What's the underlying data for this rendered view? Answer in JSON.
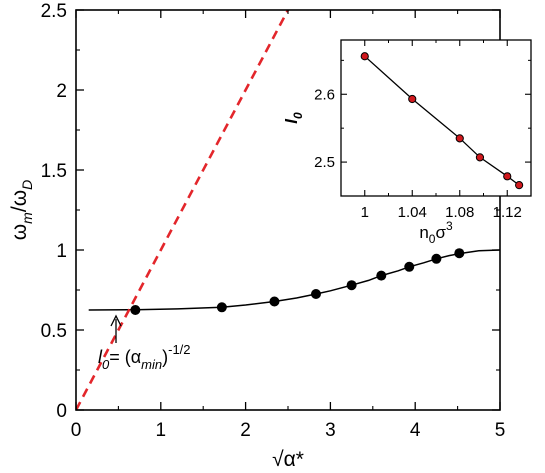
{
  "chart_data": [
    {
      "type": "line",
      "xlabel": "√α*",
      "ylabel": "ωm/ωD",
      "xlim": [
        0,
        5
      ],
      "ylim": [
        0,
        2.5
      ],
      "xticks": [
        "0",
        "1",
        "2",
        "3",
        "4",
        "5"
      ],
      "yticks": [
        "0",
        "0.5",
        "1",
        "1.5",
        "2",
        "2.5"
      ],
      "grid": false,
      "series": [
        {
          "style": "solid-line",
          "color": "#000000",
          "x": [
            0.15,
            0.7,
            1.2,
            1.72,
            2.0,
            2.34,
            2.6,
            2.83,
            3.0,
            3.25,
            3.45,
            3.6,
            3.8,
            3.93,
            4.1,
            4.25,
            4.4,
            4.55,
            4.75,
            5.0
          ],
          "y": [
            0.625,
            0.627,
            0.632,
            0.642,
            0.656,
            0.678,
            0.7,
            0.725,
            0.745,
            0.78,
            0.81,
            0.84,
            0.87,
            0.895,
            0.92,
            0.945,
            0.965,
            0.98,
            0.995,
            1.0
          ]
        },
        {
          "style": "markers",
          "color": "#000000",
          "x": [
            0.7,
            1.72,
            2.34,
            2.83,
            3.25,
            3.6,
            3.93,
            4.25,
            4.52
          ],
          "y": [
            0.625,
            0.642,
            0.678,
            0.725,
            0.78,
            0.84,
            0.895,
            0.945,
            0.98
          ]
        },
        {
          "style": "dashed-line",
          "color": "#e3262b",
          "x": [
            0,
            2.5
          ],
          "y": [
            0,
            2.5
          ]
        }
      ],
      "annotations": [
        {
          "text_prefix": "l",
          "text_sub0": "0",
          "text_mid": "= (α",
          "text_sub": "min",
          "text_close": ")",
          "text_sup": "-1/2",
          "arrow_x": 0.4
        }
      ]
    },
    {
      "type": "line",
      "xlabel_main": "n",
      "xlabel_sub": "0",
      "xlabel_mid": "σ",
      "xlabel_sup": "3",
      "ylabel_main": "l",
      "ylabel_sub": "0",
      "xlim": [
        0.98,
        1.14
      ],
      "ylim": [
        2.45,
        2.68
      ],
      "xticks": [
        "1",
        "1.04",
        "1.08",
        "1.12"
      ],
      "yticks": [
        "2.5",
        "2.6"
      ],
      "grid": false,
      "series": [
        {
          "style": "line-markers",
          "line_color": "#000000",
          "marker_color": "#d0181d",
          "x": [
            1.0,
            1.04,
            1.08,
            1.097,
            1.12,
            1.13
          ],
          "y": [
            2.656,
            2.593,
            2.535,
            2.507,
            2.479,
            2.466
          ]
        }
      ]
    }
  ]
}
